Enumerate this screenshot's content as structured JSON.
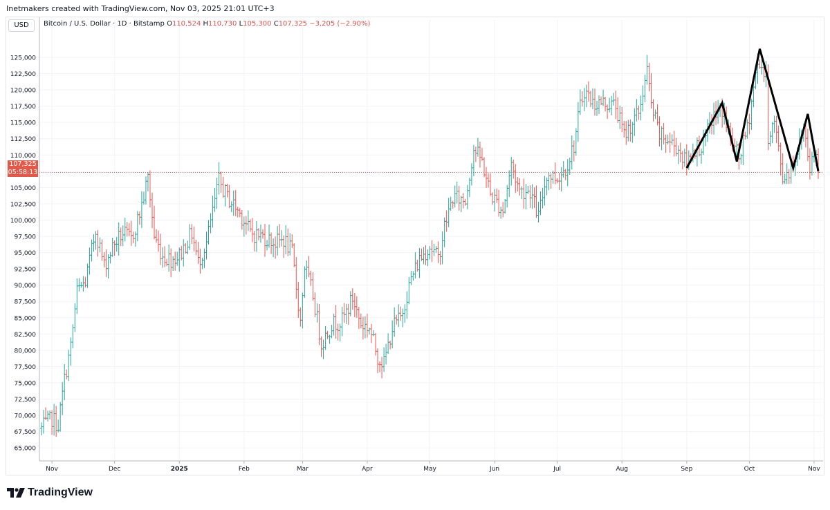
{
  "header": {
    "text": "Inetmakers created with TradingView.com, Nov 03, 2025 21:01 UTC+3"
  },
  "currency_label": "USD",
  "legend": {
    "symbol": "Bitcoin / U.S. Dollar · 1D · Bitstamp",
    "o_label": "O",
    "o_value": "110,524",
    "h_label": "H",
    "h_value": "110,730",
    "l_label": "L",
    "l_value": "105,300",
    "c_label": "C",
    "c_value": "107,325",
    "change": "−3,205 (−2.90%)"
  },
  "last_price": {
    "price": "107,325",
    "countdown": "05:58:13"
  },
  "brand": {
    "name": "TradingView",
    "icon": "tradingview-logo"
  },
  "colors": {
    "up": "#26a69a",
    "down": "#ef5350",
    "badge": "#e0594a",
    "pattern": "#000000",
    "grid": "#f0f3fa"
  },
  "chart_data": {
    "type": "ohlc",
    "title": "Bitcoin / U.S. Dollar · 1D · Bitstamp",
    "ylim": [
      63000,
      128500
    ],
    "y_ticks": [
      65000,
      67500,
      70000,
      72500,
      75000,
      77500,
      80000,
      82500,
      85000,
      87500,
      90000,
      92500,
      95000,
      97500,
      100000,
      102500,
      105000,
      107500,
      110000,
      112500,
      115000,
      117500,
      120000,
      122500,
      125000
    ],
    "x_ticks": [
      {
        "label": "Nov",
        "date": "2024-11-01",
        "bold": false
      },
      {
        "label": "Dec",
        "date": "2024-12-01",
        "bold": false
      },
      {
        "label": "2025",
        "date": "2025-01-01",
        "bold": true
      },
      {
        "label": "Feb",
        "date": "2025-02-01",
        "bold": false
      },
      {
        "label": "Mar",
        "date": "2025-03-01",
        "bold": false
      },
      {
        "label": "Apr",
        "date": "2025-04-01",
        "bold": false
      },
      {
        "label": "May",
        "date": "2025-05-01",
        "bold": false
      },
      {
        "label": "Jun",
        "date": "2025-06-01",
        "bold": false
      },
      {
        "label": "Jul",
        "date": "2025-07-01",
        "bold": false
      },
      {
        "label": "Aug",
        "date": "2025-08-01",
        "bold": false
      },
      {
        "label": "Sep",
        "date": "2025-09-01",
        "bold": false
      },
      {
        "label": "Oct",
        "date": "2025-10-01",
        "bold": false
      },
      {
        "label": "Nov",
        "date": "2025-11-01",
        "bold": false
      }
    ],
    "x_range": [
      "2024-10-27",
      "2025-11-03"
    ],
    "close_path": [
      [
        "2024-10-27",
        68000
      ],
      [
        "2024-11-01",
        69500
      ],
      [
        "2024-11-04",
        68500
      ],
      [
        "2024-11-07",
        75500
      ],
      [
        "2024-11-10",
        80500
      ],
      [
        "2024-11-13",
        89000
      ],
      [
        "2024-11-17",
        90500
      ],
      [
        "2024-11-22",
        98500
      ],
      [
        "2024-11-26",
        93000
      ],
      [
        "2024-12-01",
        96500
      ],
      [
        "2024-12-05",
        98000
      ],
      [
        "2024-12-09",
        97000
      ],
      [
        "2024-12-13",
        101000
      ],
      [
        "2024-12-17",
        106500
      ],
      [
        "2024-12-20",
        97500
      ],
      [
        "2024-12-24",
        94500
      ],
      [
        "2024-12-28",
        94000
      ],
      [
        "2025-01-01",
        94500
      ],
      [
        "2025-01-07",
        98000
      ],
      [
        "2025-01-10",
        93500
      ],
      [
        "2025-01-14",
        96500
      ],
      [
        "2025-01-20",
        106000
      ],
      [
        "2025-01-24",
        103500
      ],
      [
        "2025-01-28",
        102000
      ],
      [
        "2025-02-01",
        100000
      ],
      [
        "2025-02-04",
        98000
      ],
      [
        "2025-02-10",
        97500
      ],
      [
        "2025-02-16",
        96500
      ],
      [
        "2025-02-20",
        97000
      ],
      [
        "2025-02-24",
        95000
      ],
      [
        "2025-02-28",
        84500
      ],
      [
        "2025-03-02",
        93000
      ],
      [
        "2025-03-06",
        88500
      ],
      [
        "2025-03-10",
        81000
      ],
      [
        "2025-03-15",
        84000
      ],
      [
        "2025-03-20",
        84500
      ],
      [
        "2025-03-25",
        88000
      ],
      [
        "2025-03-29",
        84000
      ],
      [
        "2025-04-02",
        83500
      ],
      [
        "2025-04-06",
        79000
      ],
      [
        "2025-04-09",
        78000
      ],
      [
        "2025-04-13",
        83500
      ],
      [
        "2025-04-17",
        85000
      ],
      [
        "2025-04-22",
        91000
      ],
      [
        "2025-04-26",
        94000
      ],
      [
        "2025-05-01",
        96000
      ],
      [
        "2025-05-05",
        94000
      ],
      [
        "2025-05-08",
        99000
      ],
      [
        "2025-05-12",
        103500
      ],
      [
        "2025-05-18",
        103000
      ],
      [
        "2025-05-22",
        111000
      ],
      [
        "2025-05-26",
        109000
      ],
      [
        "2025-05-30",
        104000
      ],
      [
        "2025-06-05",
        101500
      ],
      [
        "2025-06-09",
        108500
      ],
      [
        "2025-06-13",
        104500
      ],
      [
        "2025-06-18",
        104500
      ],
      [
        "2025-06-22",
        100500
      ],
      [
        "2025-06-26",
        107000
      ],
      [
        "2025-07-01",
        106500
      ],
      [
        "2025-07-05",
        108000
      ],
      [
        "2025-07-09",
        111500
      ],
      [
        "2025-07-12",
        117500
      ],
      [
        "2025-07-14",
        120000
      ],
      [
        "2025-07-18",
        118000
      ],
      [
        "2025-07-24",
        118000
      ],
      [
        "2025-07-29",
        117500
      ],
      [
        "2025-08-02",
        113000
      ],
      [
        "2025-08-05",
        114500
      ],
      [
        "2025-08-09",
        116500
      ],
      [
        "2025-08-13",
        123000
      ],
      [
        "2025-08-15",
        117500
      ],
      [
        "2025-08-19",
        113000
      ],
      [
        "2025-08-24",
        112000
      ],
      [
        "2025-08-28",
        111000
      ],
      [
        "2025-09-01",
        108500
      ],
      [
        "2025-09-04",
        111000
      ],
      [
        "2025-09-09",
        111500
      ],
      [
        "2025-09-13",
        115500
      ],
      [
        "2025-09-18",
        117000
      ],
      [
        "2025-09-22",
        112500
      ],
      [
        "2025-09-26",
        109500
      ],
      [
        "2025-09-30",
        114000
      ],
      [
        "2025-10-04",
        122500
      ],
      [
        "2025-10-06",
        124500
      ],
      [
        "2025-10-09",
        121500
      ],
      [
        "2025-10-10",
        113000
      ],
      [
        "2025-10-13",
        115000
      ],
      [
        "2025-10-17",
        106500
      ],
      [
        "2025-10-21",
        108000
      ],
      [
        "2025-10-25",
        111500
      ],
      [
        "2025-10-27",
        114500
      ],
      [
        "2025-10-30",
        108500
      ],
      [
        "2025-11-02",
        110500
      ],
      [
        "2025-11-03",
        107300
      ]
    ],
    "last_close": 107325,
    "annotation": {
      "type": "zigzag",
      "points": [
        [
          "2025-09-01",
          108000
        ],
        [
          "2025-09-18",
          118000
        ],
        [
          "2025-09-25",
          109000
        ],
        [
          "2025-10-06",
          126300
        ],
        [
          "2025-10-22",
          108000
        ],
        [
          "2025-10-29",
          116300
        ],
        [
          "2025-11-03",
          107500
        ]
      ]
    }
  }
}
